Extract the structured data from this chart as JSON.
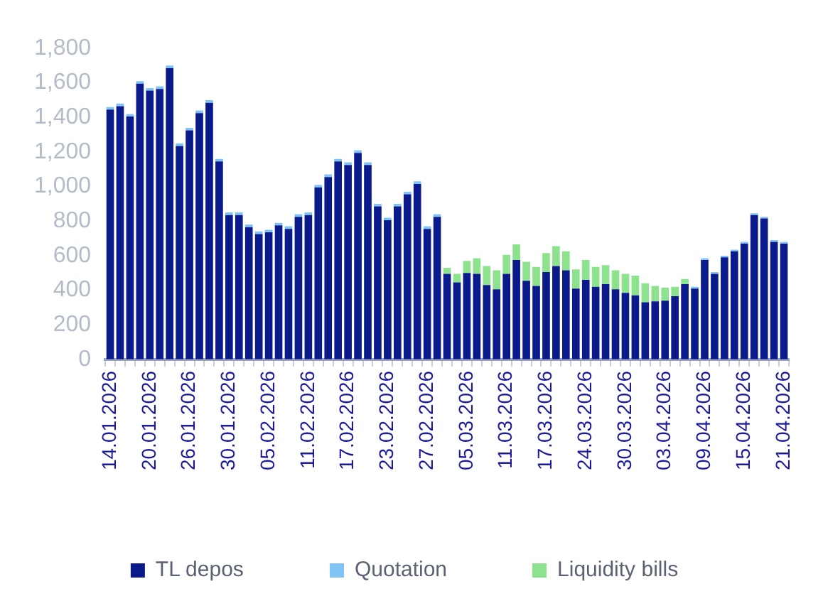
{
  "chart_data": {
    "type": "bar",
    "stacked": true,
    "legend": "bottom",
    "grid": false,
    "categories": [
      "14.01.2026",
      null,
      null,
      null,
      "20.01.2026",
      null,
      null,
      null,
      "26.01.2026",
      null,
      null,
      null,
      "30.01.2026",
      null,
      null,
      null,
      "05.02.2026",
      null,
      null,
      null,
      "11.02.2026",
      null,
      null,
      null,
      "17.02.2026",
      null,
      null,
      null,
      "23.02.2026",
      null,
      null,
      null,
      "27.02.2026",
      null,
      null,
      null,
      "05.03.2026",
      null,
      null,
      null,
      "11.03.2026",
      null,
      null,
      null,
      "17.03.2026",
      null,
      null,
      null,
      "24.03.2026",
      null,
      null,
      null,
      "30.03.2026",
      null,
      null,
      null,
      "03.04.2026",
      null,
      null,
      null,
      "09.04.2026",
      null,
      null,
      null,
      "15.04.2026",
      null,
      null,
      null,
      "21.04.2026"
    ],
    "ylim": [
      0,
      1800
    ],
    "yticks": [
      0,
      200,
      400,
      600,
      800,
      {
        "value": 1000,
        "label": "1,000"
      },
      {
        "value": 1200,
        "label": "1,200"
      },
      {
        "value": 1400,
        "label": "1,400"
      },
      {
        "value": 1600,
        "label": "1,600"
      },
      {
        "value": 1800,
        "label": "1,800"
      }
    ],
    "series": [
      {
        "name": "TL depos",
        "color": "#0b1a8a",
        "values": [
          1445,
          1465,
          1405,
          1595,
          1555,
          1565,
          1685,
          1235,
          1325,
          1425,
          1485,
          1145,
          835,
          835,
          765,
          725,
          735,
          775,
          755,
          825,
          835,
          995,
          1055,
          1145,
          1125,
          1195,
          1125,
          885,
          805,
          885,
          955,
          1015,
          755,
          825,
          495,
          445,
          500,
          495,
          430,
          405,
          495,
          575,
          455,
          425,
          505,
          540,
          515,
          410,
          460,
          420,
          435,
          405,
          385,
          370,
          330,
          335,
          340,
          365,
          435,
          410,
          575,
          495,
          590,
          625,
          670,
          835,
          815,
          680,
          670
        ]
      },
      {
        "name": "Quotation",
        "color": "#80c4f6",
        "values": [
          15,
          15,
          15,
          15,
          15,
          15,
          15,
          15,
          15,
          15,
          15,
          15,
          15,
          15,
          15,
          15,
          15,
          15,
          15,
          15,
          15,
          15,
          15,
          15,
          15,
          15,
          15,
          15,
          15,
          15,
          15,
          15,
          15,
          15,
          0,
          0,
          0,
          0,
          0,
          0,
          0,
          0,
          0,
          0,
          0,
          0,
          0,
          0,
          0,
          0,
          0,
          0,
          0,
          0,
          0,
          0,
          0,
          0,
          0,
          10,
          10,
          10,
          10,
          10,
          10,
          10,
          10,
          10,
          10
        ]
      },
      {
        "name": "Liquidity bills",
        "color": "#8de38d",
        "values": [
          0,
          0,
          0,
          0,
          0,
          0,
          0,
          0,
          0,
          0,
          0,
          0,
          0,
          0,
          0,
          0,
          0,
          0,
          0,
          0,
          0,
          0,
          0,
          0,
          0,
          0,
          0,
          0,
          0,
          0,
          0,
          0,
          0,
          0,
          35,
          50,
          70,
          90,
          110,
          110,
          110,
          90,
          110,
          110,
          110,
          115,
          110,
          110,
          115,
          115,
          110,
          110,
          110,
          115,
          110,
          90,
          75,
          55,
          30,
          0,
          0,
          0,
          0,
          0,
          0,
          0,
          0,
          0,
          0
        ]
      }
    ]
  }
}
